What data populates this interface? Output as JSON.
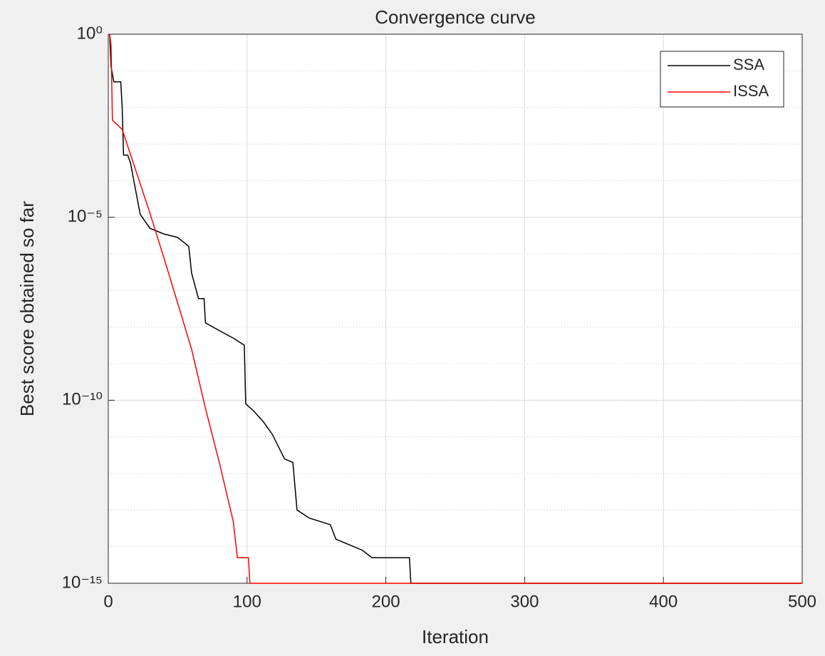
{
  "chart_data": {
    "type": "line",
    "title": "Convergence curve",
    "x_label": "Iteration",
    "y_label": "Best score obtained so far",
    "y_scale": "log",
    "grid": true,
    "minor_grid": true,
    "legend": "upper right",
    "xlim": [
      0,
      500
    ],
    "xticks": [
      0,
      100,
      200,
      300,
      400,
      500
    ],
    "ylim": [
      1e-15,
      1
    ],
    "yticks": [
      {
        "value": 1e-15,
        "label": "10⁻¹⁵"
      },
      {
        "value": 1e-10,
        "label": "10⁻¹⁰"
      },
      {
        "value": 1e-05,
        "label": "10⁻⁵"
      },
      {
        "value": 1,
        "label": "10⁰"
      }
    ],
    "series": [
      {
        "name": "SSA",
        "color": "#000000",
        "x": [
          1,
          2,
          4,
          9,
          10,
          11,
          14,
          16,
          23,
          30,
          40,
          50,
          58,
          60,
          65,
          69,
          70,
          80,
          90,
          98,
          99,
          105,
          112,
          118,
          122,
          127,
          133,
          136,
          145,
          160,
          164,
          183,
          190,
          217,
          218,
          500
        ],
        "values": [
          1,
          0.13,
          0.05,
          0.05,
          0.01,
          0.0005,
          0.0005,
          0.0003,
          1.2e-05,
          5e-06,
          3.5e-06,
          2.8e-06,
          1.6e-06,
          3e-07,
          6e-08,
          6e-08,
          1.3e-08,
          8e-09,
          5e-09,
          3.2e-09,
          8e-11,
          5e-11,
          2.5e-11,
          1.2e-11,
          6e-12,
          2.5e-12,
          2e-12,
          1e-13,
          6e-14,
          4e-14,
          1.6e-14,
          8e-15,
          5e-15,
          5e-15,
          1e-15,
          1e-15
        ]
      },
      {
        "name": "ISSA",
        "color": "#ff0000",
        "x": [
          1,
          2,
          3,
          10,
          20,
          30,
          40,
          50,
          60,
          70,
          80,
          90,
          93,
          101,
          102,
          500
        ],
        "values": [
          1,
          0.5,
          0.0045,
          0.0025,
          0.00018,
          1.3e-05,
          8e-07,
          4.5e-08,
          2.5e-09,
          6e-11,
          2e-12,
          5e-14,
          5e-15,
          5e-15,
          1e-15,
          1e-15
        ]
      }
    ]
  }
}
